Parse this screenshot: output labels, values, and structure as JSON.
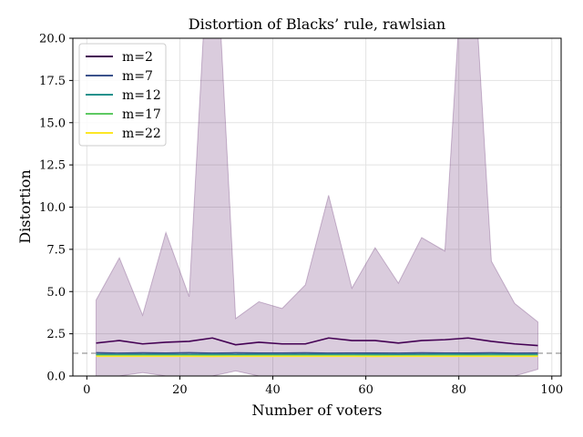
{
  "chart_data": {
    "type": "line",
    "title": "Distortion of Blacks’ rule, rawlsian",
    "xlabel": "Number of voters",
    "ylabel": "Distortion",
    "xlim": [
      -3,
      102
    ],
    "ylim": [
      0,
      20
    ],
    "xticks": [
      0,
      20,
      40,
      60,
      80,
      100
    ],
    "yticks": [
      0.0,
      2.5,
      5.0,
      7.5,
      10.0,
      12.5,
      15.0,
      17.5,
      20.0
    ],
    "xtick_labels": [
      "0",
      "20",
      "40",
      "60",
      "80",
      "100"
    ],
    "ytick_labels": [
      "0.0",
      "2.5",
      "5.0",
      "7.5",
      "10.0",
      "12.5",
      "15.0",
      "17.5",
      "20.0"
    ],
    "grid": true,
    "legend_position": "top-left",
    "reference_line": {
      "y": 1.35,
      "style": "dashed",
      "color": "#aaaaaa"
    },
    "x": [
      2,
      7,
      12,
      17,
      22,
      27,
      32,
      37,
      42,
      47,
      52,
      57,
      62,
      67,
      72,
      77,
      82,
      87,
      92,
      97
    ],
    "band": {
      "color": "#440154",
      "upper": [
        4.5,
        7.0,
        3.6,
        8.5,
        4.7,
        30,
        3.4,
        4.4,
        4.0,
        5.4,
        10.7,
        5.2,
        7.6,
        5.5,
        8.2,
        7.4,
        30,
        6.8,
        4.3,
        3.2
      ],
      "lower": [
        0.0,
        0.0,
        0.2,
        0.0,
        0.0,
        0.0,
        0.3,
        0.0,
        0.0,
        0.0,
        0.0,
        0.0,
        0.0,
        0.0,
        0.0,
        0.0,
        0.0,
        0.0,
        0.0,
        0.4
      ]
    },
    "series": [
      {
        "name": "m=2",
        "color": "#440154",
        "values": [
          1.95,
          2.1,
          1.9,
          2.0,
          2.05,
          2.25,
          1.85,
          2.0,
          1.9,
          1.9,
          2.25,
          2.1,
          2.1,
          1.95,
          2.1,
          2.15,
          2.25,
          2.05,
          1.9,
          1.8
        ]
      },
      {
        "name": "m=7",
        "color": "#3b528b",
        "values": [
          1.38,
          1.35,
          1.37,
          1.36,
          1.38,
          1.35,
          1.37,
          1.36,
          1.36,
          1.37,
          1.35,
          1.36,
          1.36,
          1.35,
          1.37,
          1.36,
          1.36,
          1.37,
          1.35,
          1.36
        ]
      },
      {
        "name": "m=12",
        "color": "#21918c",
        "values": [
          1.28,
          1.27,
          1.28,
          1.28,
          1.27,
          1.28,
          1.27,
          1.28,
          1.27,
          1.28,
          1.28,
          1.27,
          1.28,
          1.27,
          1.28,
          1.29,
          1.28,
          1.29,
          1.28,
          1.27
        ]
      },
      {
        "name": "m=17",
        "color": "#5ec962",
        "values": [
          1.21,
          1.21,
          1.21,
          1.21,
          1.21,
          1.21,
          1.2,
          1.21,
          1.21,
          1.21,
          1.21,
          1.21,
          1.21,
          1.2,
          1.21,
          1.21,
          1.21,
          1.21,
          1.21,
          1.21
        ]
      },
      {
        "name": "m=22",
        "color": "#fde725",
        "values": [
          1.17,
          1.17,
          1.17,
          1.17,
          1.17,
          1.16,
          1.17,
          1.17,
          1.17,
          1.17,
          1.17,
          1.17,
          1.16,
          1.17,
          1.17,
          1.17,
          1.17,
          1.17,
          1.17,
          1.17
        ]
      }
    ]
  }
}
